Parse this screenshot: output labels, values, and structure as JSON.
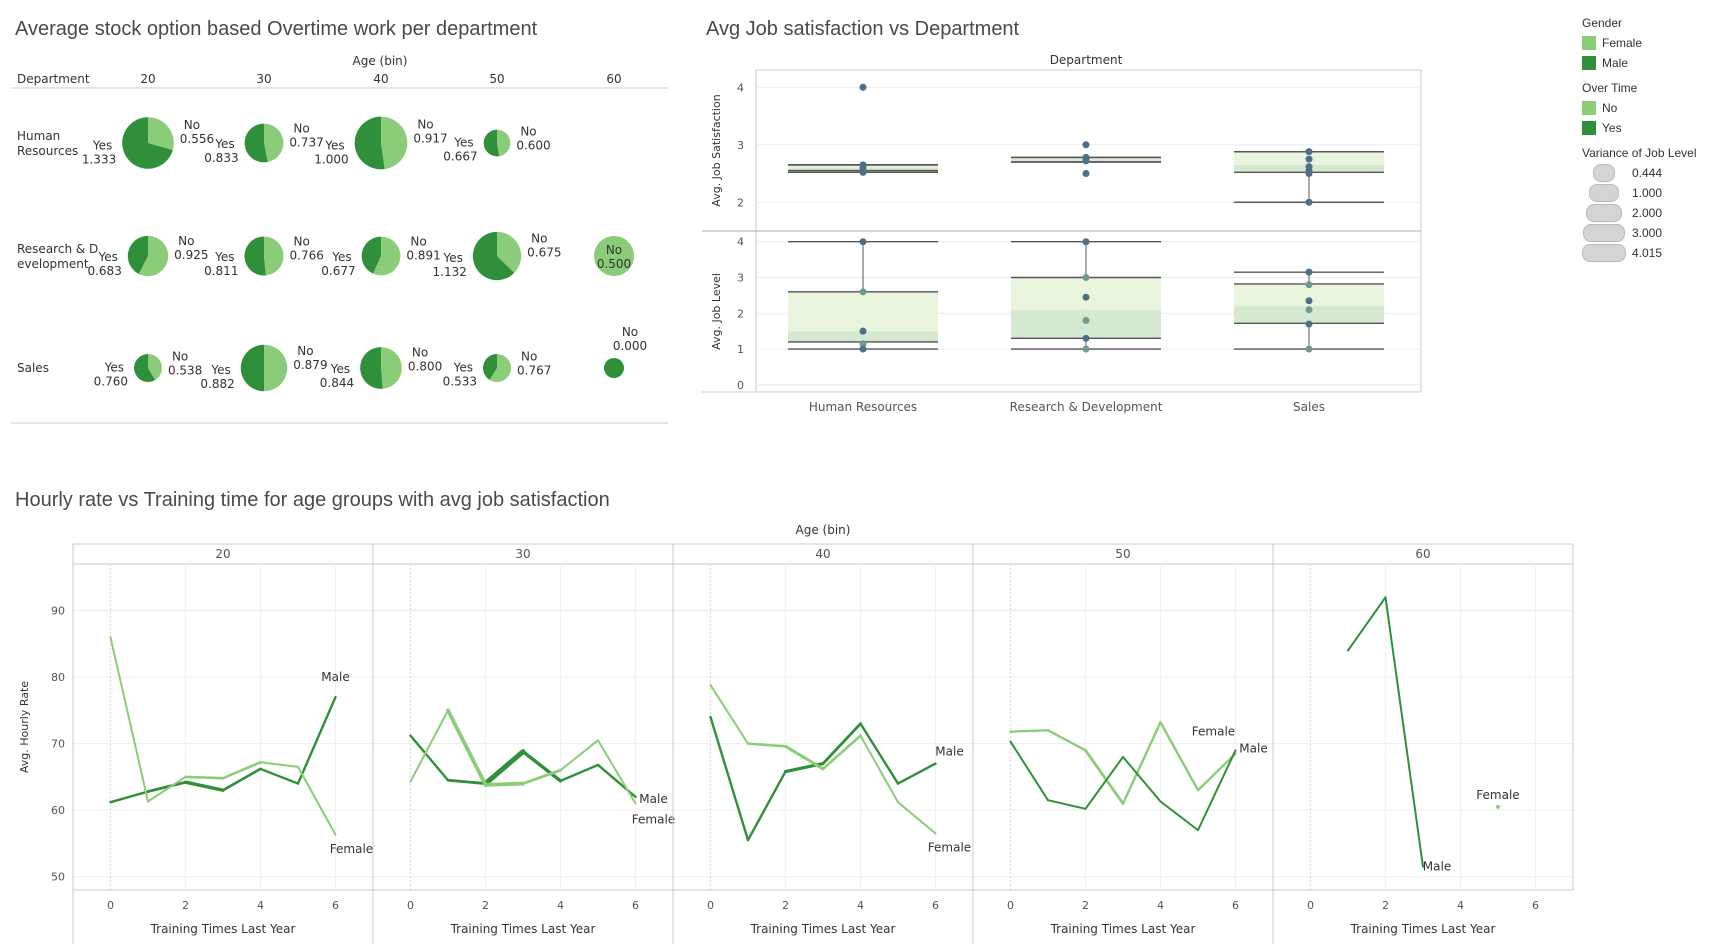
{
  "colors": {
    "light_green": "#8acc78",
    "dark_green": "#2f8f3b",
    "mid_line": "#5aa868",
    "box_light": "#e9f4dc",
    "box_dark": "#d4e9cf",
    "dot_blue": "#4e6f8a",
    "dot_teal": "#6f9a90",
    "axis": "#c8c8c8",
    "grid": "#ececec",
    "whisker": "#555555"
  },
  "legend": {
    "gender_title": "Gender",
    "gender_items": [
      {
        "label": "Female",
        "color": "#8acc78"
      },
      {
        "label": "Male",
        "color": "#2f8f3b"
      }
    ],
    "overtime_title": "Over Time",
    "overtime_items": [
      {
        "label": "No",
        "color": "#8acc78"
      },
      {
        "label": "Yes",
        "color": "#2f8f3b"
      }
    ],
    "variance_title": "Variance of Job Level",
    "variance_items": [
      "0.444",
      "1.000",
      "2.000",
      "3.000",
      "4.015"
    ]
  },
  "chart_data": [
    {
      "type": "pie",
      "title": "Average stock option based Overtime work per department",
      "column_header": "Age (bin)",
      "row_header": "Department",
      "columns": [
        "20",
        "30",
        "40",
        "50",
        "60"
      ],
      "rows": [
        "Human Resources",
        "Research & Development",
        "Sales"
      ],
      "row_labels": [
        [
          "Human",
          "Resources"
        ],
        [
          "Research & D",
          "evelopment"
        ],
        [
          "Sales"
        ]
      ],
      "cells": [
        [
          {
            "yes": 1.333,
            "no": 0.556
          },
          {
            "yes": 0.833,
            "no": 0.737
          },
          {
            "yes": 1.0,
            "no": 0.917
          },
          {
            "yes": 0.667,
            "no": 0.6
          },
          null
        ],
        [
          {
            "yes": 0.683,
            "no": 0.925
          },
          {
            "yes": 0.811,
            "no": 0.766
          },
          {
            "yes": 0.677,
            "no": 0.891
          },
          {
            "yes": 1.132,
            "no": 0.675
          },
          {
            "yes": null,
            "no": 0.5
          }
        ],
        [
          {
            "yes": 0.76,
            "no": 0.538
          },
          {
            "yes": 0.882,
            "no": 0.879
          },
          {
            "yes": 0.844,
            "no": 0.8
          },
          {
            "yes": 0.533,
            "no": 0.767
          },
          {
            "yes": null,
            "no": 0.0
          }
        ]
      ],
      "yes_label": "Yes",
      "no_label": "No"
    },
    {
      "type": "box",
      "title": "Avg Job satisfaction vs Department",
      "column_header": "Department",
      "categories": [
        "Human Resources",
        "Research & Development",
        "Sales"
      ],
      "panels": [
        {
          "ylabel": "Avg. Job Satisfaction",
          "ylim": [
            1.5,
            4.3
          ],
          "yticks": [
            2,
            3,
            4
          ],
          "boxes": [
            {
              "points": [
                4.0,
                2.65,
                2.6,
                2.55,
                2.52
              ],
              "whisker_low": 2.52,
              "q1": 2.55,
              "median": 2.6,
              "q3": 2.65,
              "whisker_high": 2.65
            },
            {
              "points": [
                3.0,
                2.78,
                2.75,
                2.72,
                2.5
              ],
              "whisker_low": 2.7,
              "q1": 2.7,
              "median": 2.75,
              "q3": 2.78,
              "whisker_high": 2.78
            },
            {
              "points": [
                2.88,
                2.75,
                2.62,
                2.55,
                2.5,
                2.0
              ],
              "whisker_low": 2.0,
              "q1": 2.52,
              "median": 2.65,
              "q3": 2.88,
              "whisker_high": 2.88
            }
          ]
        },
        {
          "ylabel": "Avg. Job Level",
          "ylim": [
            -0.2,
            4.3
          ],
          "yticks": [
            0,
            1,
            2,
            3,
            4
          ],
          "boxes": [
            {
              "points": [
                4.0,
                2.6,
                1.5,
                1.15,
                1.0
              ],
              "whisker_low": 1.0,
              "q1": 1.2,
              "median": 1.5,
              "q3": 2.6,
              "whisker_high": 4.0
            },
            {
              "points": [
                4.0,
                3.0,
                2.45,
                1.8,
                1.3,
                1.0
              ],
              "whisker_low": 1.0,
              "q1": 1.3,
              "median": 2.1,
              "q3": 3.0,
              "whisker_high": 4.0
            },
            {
              "points": [
                3.15,
                2.8,
                2.35,
                2.1,
                1.7,
                1.0
              ],
              "whisker_low": 1.0,
              "q1": 1.72,
              "median": 2.2,
              "q3": 2.82,
              "whisker_high": 3.15
            }
          ]
        }
      ]
    },
    {
      "type": "line",
      "title": "Hourly rate vs Training time for age groups with avg job satisfaction",
      "column_header": "Age (bin)",
      "xlabel": "Training Times Last Year",
      "ylabel": "Avg. Hourly Rate",
      "ylim": [
        48,
        97
      ],
      "yticks": [
        50,
        60,
        70,
        80,
        90
      ],
      "xlim": [
        -1,
        7
      ],
      "xticks": [
        0,
        2,
        4,
        6
      ],
      "panels": [
        {
          "age": "20",
          "series": [
            {
              "name": "Male",
              "x": [
                0,
                1,
                2,
                3,
                4,
                5,
                6
              ],
              "y": [
                61.2,
                62.8,
                64.2,
                63.0,
                66.2,
                64.0,
                77.0
              ],
              "label_at": 6,
              "widths": [
                2.4,
                2.8,
                3.4,
                2.6,
                2.2,
                2.4
              ]
            },
            {
              "name": "Female",
              "x": [
                0,
                1,
                2,
                3,
                4,
                5,
                6
              ],
              "y": [
                86.0,
                61.3,
                65.0,
                64.8,
                67.2,
                66.5,
                56.3
              ],
              "label_at": 6,
              "widths": [
                2,
                2,
                2.6,
                2.6,
                2,
                2
              ]
            }
          ]
        },
        {
          "age": "30",
          "series": [
            {
              "name": "Male",
              "x": [
                0,
                1,
                2,
                3,
                4,
                5,
                6
              ],
              "y": [
                71.2,
                64.5,
                64.0,
                68.8,
                64.4,
                66.8,
                62.0
              ],
              "label_at": 6,
              "widths": [
                2.4,
                2.8,
                5,
                3.4,
                2.4,
                2.4
              ]
            },
            {
              "name": "Female",
              "x": [
                0,
                1,
                2,
                3,
                4,
                5,
                6
              ],
              "y": [
                64.3,
                75.0,
                63.8,
                64.0,
                66.0,
                70.5,
                61.0
              ],
              "label_at": 6,
              "widths": [
                2,
                3.8,
                3.8,
                2.8,
                2,
                2
              ]
            }
          ]
        },
        {
          "age": "40",
          "series": [
            {
              "name": "Male",
              "x": [
                0,
                1,
                2,
                3,
                4,
                5,
                6
              ],
              "y": [
                74.0,
                55.5,
                65.8,
                67.0,
                73.0,
                64.0,
                67.0
              ],
              "label_at": 6,
              "widths": [
                2.4,
                2.4,
                3.2,
                2.8,
                2.4,
                2.4
              ]
            },
            {
              "name": "Female",
              "x": [
                0,
                1,
                2,
                3,
                4,
                5,
                6
              ],
              "y": [
                78.8,
                70.0,
                69.6,
                66.2,
                71.2,
                61.2,
                56.5
              ],
              "label_at": 6,
              "widths": [
                2,
                2.6,
                3,
                2.6,
                2,
                2
              ]
            }
          ]
        },
        {
          "age": "50",
          "series": [
            {
              "name": "Female",
              "x": [
                0,
                1,
                2,
                3,
                4,
                5,
                6
              ],
              "y": [
                71.8,
                72.0,
                69.0,
                61.0,
                73.2,
                63.0,
                68.5
              ],
              "label_at": 6,
              "widths": [
                2.4,
                2.4,
                2.8,
                2.4,
                2.4,
                2.4
              ]
            },
            {
              "name": "Male",
              "x": [
                0,
                1,
                2,
                3,
                4,
                5,
                6
              ],
              "y": [
                70.3,
                61.5,
                60.2,
                68.0,
                61.3,
                57.0,
                69.0
              ],
              "label_at": 6,
              "widths": [
                2,
                2,
                2,
                2,
                2,
                2
              ]
            }
          ]
        },
        {
          "age": "60",
          "series": [
            {
              "name": "Male",
              "x": [
                1,
                2,
                3
              ],
              "y": [
                84.0,
                92.0,
                51.5
              ],
              "label_at": 3,
              "widths": [
                2,
                2
              ]
            },
            {
              "name": "Female",
              "x": [
                5
              ],
              "y": [
                60.5
              ],
              "label_at": 5,
              "widths": []
            }
          ]
        }
      ]
    }
  ]
}
